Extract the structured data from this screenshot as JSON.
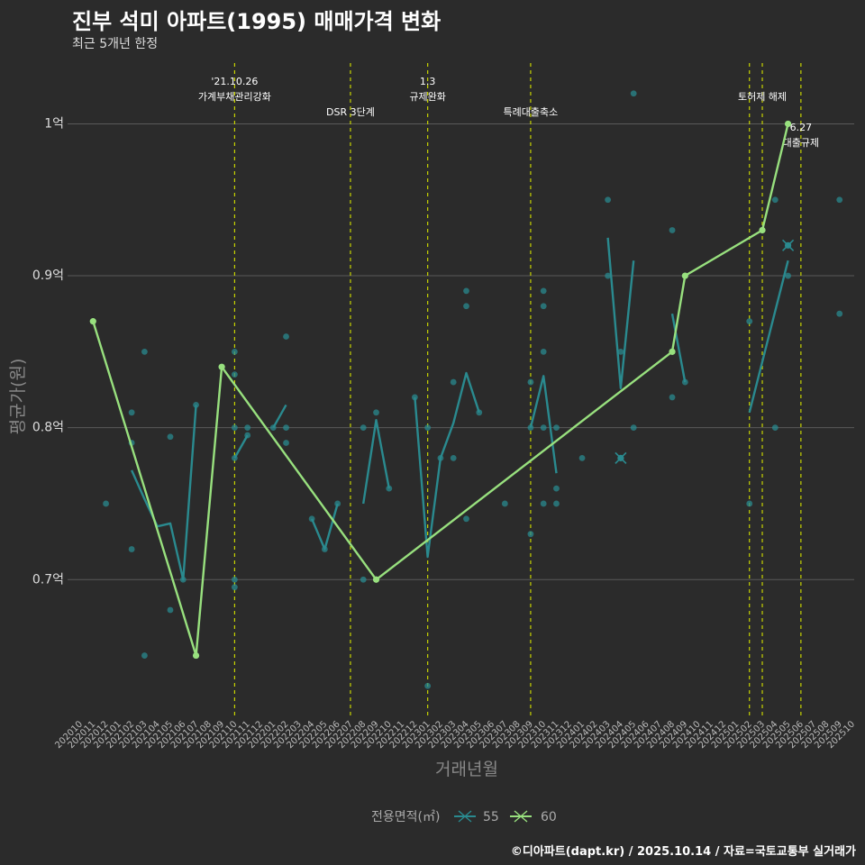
{
  "header": {
    "title": "진부 석미 아파트(1995) 매매가격 변화",
    "subtitle": "최근 5개년 한정"
  },
  "footer": {
    "caption": "©디아파트(dapt.kr) / 2025.10.14 / 자료=국토교통부 실거래가"
  },
  "colors": {
    "background": "#2b2b2b",
    "grid": "#5a5a5a",
    "series_55": "#2a8a8f",
    "series_60": "#98e07e",
    "event_line": "#c8d400"
  },
  "chart_data": {
    "type": "line",
    "title": "진부 석미 아파트(1995) 매매가격 변화",
    "subtitle": "최근 5개년 한정",
    "xlabel": "거래년월",
    "ylabel": "평균가(원)",
    "ylim": [
      0.61,
      1.04
    ],
    "yticks": [
      {
        "value": 0.7,
        "label": "0.7억"
      },
      {
        "value": 0.8,
        "label": "0.8억"
      },
      {
        "value": 0.9,
        "label": "0.9억"
      },
      {
        "value": 1.0,
        "label": "1억"
      }
    ],
    "months": [
      "202010",
      "202011",
      "202012",
      "202101",
      "202102",
      "202103",
      "202104",
      "202105",
      "202106",
      "202107",
      "202108",
      "202109",
      "202110",
      "202111",
      "202112",
      "202201",
      "202202",
      "202203",
      "202204",
      "202205",
      "202206",
      "202207",
      "202208",
      "202209",
      "202210",
      "202211",
      "202212",
      "202301",
      "202302",
      "202303",
      "202304",
      "202305",
      "202306",
      "202307",
      "202308",
      "202309",
      "202310",
      "202311",
      "202312",
      "202401",
      "202402",
      "202403",
      "202404",
      "202405",
      "202406",
      "202407",
      "202408",
      "202409",
      "202410",
      "202411",
      "202412",
      "202501",
      "202502",
      "202503",
      "202504",
      "202505",
      "202506",
      "202507",
      "202508",
      "202509",
      "202510"
    ],
    "legend": {
      "title": "전용면적(㎡)",
      "items": [
        "55",
        "60"
      ]
    },
    "series": [
      {
        "name": "55",
        "segments": [
          [
            [
              "202102",
              0.772
            ],
            [
              "202103",
              0.753
            ],
            [
              "202104",
              0.735
            ],
            [
              "202105",
              0.737
            ],
            [
              "202106",
              0.7
            ],
            [
              "202107",
              0.815
            ]
          ],
          [
            [
              "202110",
              0.78
            ],
            [
              "202111",
              0.795
            ]
          ],
          [
            [
              "202201",
              0.8
            ],
            [
              "202202",
              0.815
            ]
          ],
          [
            [
              "202204",
              0.74
            ],
            [
              "202205",
              0.72
            ],
            [
              "202206",
              0.75
            ]
          ],
          [
            [
              "202208",
              0.75
            ],
            [
              "202209",
              0.805
            ],
            [
              "202210",
              0.76
            ]
          ],
          [
            [
              "202212",
              0.82
            ],
            [
              "202301",
              0.715
            ],
            [
              "202302",
              0.78
            ],
            [
              "202303",
              0.803
            ],
            [
              "202304",
              0.836
            ],
            [
              "202305",
              0.81
            ]
          ],
          [
            [
              "202309",
              0.8
            ],
            [
              "202310",
              0.834
            ],
            [
              "202311",
              0.77
            ]
          ],
          [
            [
              "202403",
              0.925
            ],
            [
              "202404",
              0.826
            ],
            [
              "202405",
              0.91
            ]
          ],
          [
            [
              "202408",
              0.875
            ],
            [
              "202409",
              0.83
            ]
          ],
          [
            [
              "202502",
              0.81
            ],
            [
              "202505",
              0.91
            ]
          ]
        ],
        "markers": [
          [
            "202404",
            0.78
          ],
          [
            "202505",
            0.92
          ]
        ]
      },
      {
        "name": "60",
        "segments": [
          [
            [
              "202011",
              0.87
            ],
            [
              "202107",
              0.65
            ],
            [
              "202109",
              0.84
            ],
            [
              "202209",
              0.7
            ],
            [
              "202408",
              0.85
            ],
            [
              "202409",
              0.9
            ],
            [
              "202503",
              0.93
            ],
            [
              "202505",
              1.0
            ]
          ]
        ],
        "markers": []
      }
    ],
    "scatter": [
      [
        "202011",
        0.87
      ],
      [
        "202012",
        0.75
      ],
      [
        "202102",
        0.81
      ],
      [
        "202102",
        0.79
      ],
      [
        "202102",
        0.72
      ],
      [
        "202103",
        0.85
      ],
      [
        "202103",
        0.65
      ],
      [
        "202105",
        0.68
      ],
      [
        "202105",
        0.794
      ],
      [
        "202106",
        0.7
      ],
      [
        "202107",
        0.815
      ],
      [
        "202107",
        0.65
      ],
      [
        "202109",
        0.84
      ],
      [
        "202110",
        0.85
      ],
      [
        "202110",
        0.835
      ],
      [
        "202110",
        0.8
      ],
      [
        "202110",
        0.78
      ],
      [
        "202110",
        0.7
      ],
      [
        "202110",
        0.695
      ],
      [
        "202111",
        0.795
      ],
      [
        "202111",
        0.8
      ],
      [
        "202201",
        0.8
      ],
      [
        "202202",
        0.86
      ],
      [
        "202202",
        0.8
      ],
      [
        "202202",
        0.79
      ],
      [
        "202204",
        0.74
      ],
      [
        "202205",
        0.72
      ],
      [
        "202206",
        0.75
      ],
      [
        "202208",
        0.8
      ],
      [
        "202208",
        0.7
      ],
      [
        "202209",
        0.81
      ],
      [
        "202209",
        0.7
      ],
      [
        "202210",
        0.76
      ],
      [
        "202212",
        0.82
      ],
      [
        "202301",
        0.8
      ],
      [
        "202301",
        0.63
      ],
      [
        "202302",
        0.78
      ],
      [
        "202303",
        0.83
      ],
      [
        "202303",
        0.78
      ],
      [
        "202304",
        0.89
      ],
      [
        "202304",
        0.88
      ],
      [
        "202304",
        0.74
      ],
      [
        "202305",
        0.81
      ],
      [
        "202307",
        0.75
      ],
      [
        "202309",
        0.83
      ],
      [
        "202309",
        0.8
      ],
      [
        "202309",
        0.73
      ],
      [
        "202310",
        0.89
      ],
      [
        "202310",
        0.88
      ],
      [
        "202310",
        0.85
      ],
      [
        "202310",
        0.8
      ],
      [
        "202310",
        0.75
      ],
      [
        "202311",
        0.8
      ],
      [
        "202311",
        0.76
      ],
      [
        "202311",
        0.75
      ],
      [
        "202401",
        0.78
      ],
      [
        "202403",
        0.95
      ],
      [
        "202403",
        0.9
      ],
      [
        "202404",
        0.85
      ],
      [
        "202404",
        0.78
      ],
      [
        "202405",
        1.02
      ],
      [
        "202405",
        0.8
      ],
      [
        "202408",
        0.93
      ],
      [
        "202408",
        0.85
      ],
      [
        "202408",
        0.82
      ],
      [
        "202409",
        0.9
      ],
      [
        "202409",
        0.83
      ],
      [
        "202502",
        0.87
      ],
      [
        "202502",
        0.75
      ],
      [
        "202503",
        0.93
      ],
      [
        "202504",
        0.95
      ],
      [
        "202504",
        0.8
      ],
      [
        "202505",
        1.0
      ],
      [
        "202505",
        0.9
      ],
      [
        "202509",
        0.95
      ],
      [
        "202509",
        0.875
      ]
    ],
    "events": [
      {
        "month": "202110",
        "lines": [
          "'21.10.26",
          "가계부채관리강화"
        ],
        "level": 0
      },
      {
        "month": "202207",
        "lines": [
          "DSR 3단계"
        ],
        "level": 1
      },
      {
        "month": "202301",
        "lines": [
          "1.3",
          "규제완화"
        ],
        "level": 0
      },
      {
        "month": "202309",
        "lines": [
          "특례대출축소"
        ],
        "level": 1
      },
      {
        "month": "202502",
        "lines": [],
        "level": 0
      },
      {
        "month": "202503",
        "lines": [
          "토허제 해제"
        ],
        "level": 0.5
      },
      {
        "month": "202506",
        "lines": [
          "6.27",
          "대출규제"
        ],
        "level": 1.5
      }
    ]
  }
}
